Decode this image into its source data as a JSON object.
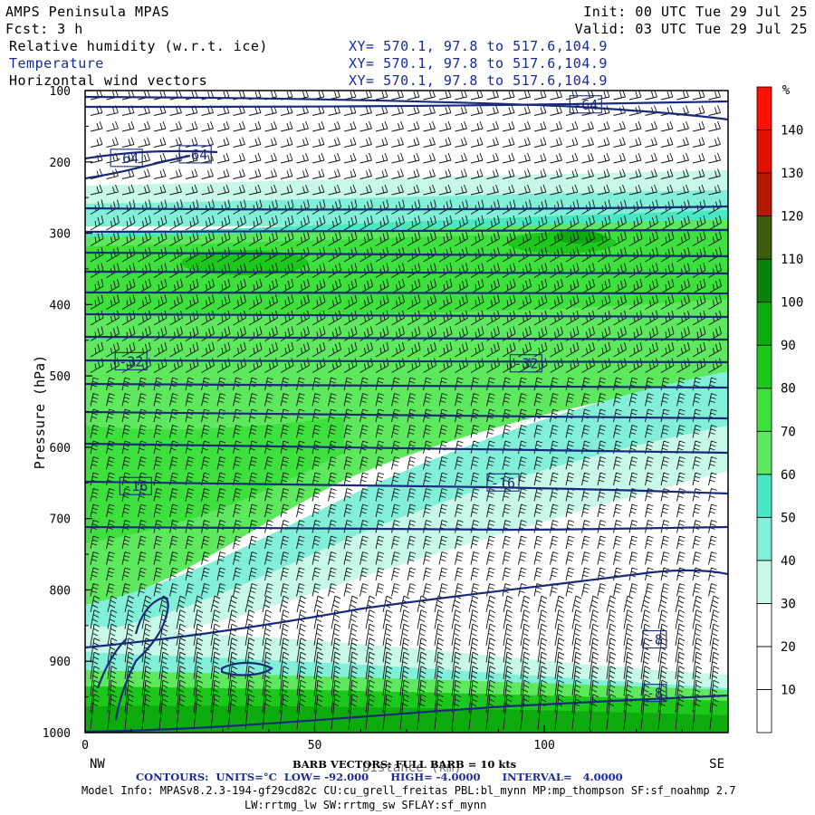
{
  "header": {
    "title": "AMPS Peninsula MPAS",
    "init": "Init: 00 UTC Tue 29 Jul 25",
    "fcst": "Fcst:    3 h",
    "valid": "Valid: 03 UTC Tue 29 Jul 25",
    "fields": [
      {
        "name": "Relative humidity (w.r.t. ice)",
        "xy": "XY= 570.1, 97.8 to 517.6,104.9"
      },
      {
        "name": "Temperature",
        "xy": "XY= 570.1, 97.8 to 517.6,104.9"
      },
      {
        "name": "Horizontal wind vectors",
        "xy": "XY= 570.1, 97.8 to 517.6,104.9"
      }
    ]
  },
  "chart_data": {
    "type": "heatmap",
    "ylabel": "Pressure (hPa)",
    "xlabel": "Distance (km)",
    "x_range": [
      0,
      140
    ],
    "y_range": [
      1000,
      100
    ],
    "x_ticks": [
      "0",
      "50",
      "100"
    ],
    "y_ticks": [
      "100",
      "200",
      "300",
      "400",
      "500",
      "600",
      "700",
      "800",
      "900",
      "1000"
    ],
    "x_end_labels": {
      "left": "NW",
      "right": "SE"
    },
    "colorbar": {
      "unit": "%",
      "levels": [
        "10",
        "20",
        "30",
        "40",
        "50",
        "60",
        "70",
        "80",
        "90",
        "100",
        "110",
        "120",
        "130",
        "140"
      ],
      "colors": [
        "#ffffff",
        "#ffffff",
        "#ffffff",
        "#c8f8ea",
        "#82f0d8",
        "#48e8c4",
        "#5ee85e",
        "#3ee03e",
        "#1cc81c",
        "#0eab0e",
        "#0a820a",
        "#3e5c0a",
        "#b41a00",
        "#e01000",
        "#ff1000"
      ]
    },
    "temperature_contour_labels": [
      {
        "label": "-64",
        "x": 109,
        "p": 120
      },
      {
        "label": "-64",
        "x": 9,
        "p": 195
      },
      {
        "label": "-64",
        "x": 24,
        "p": 190
      },
      {
        "label": "-32",
        "x": 10,
        "p": 480
      },
      {
        "label": "-32",
        "x": 96,
        "p": 483
      },
      {
        "label": "-16",
        "x": 11,
        "p": 655
      },
      {
        "label": "-16",
        "x": 91,
        "p": 650
      },
      {
        "label": "-8",
        "x": 124,
        "p": 870
      },
      {
        "label": "-8",
        "x": 124,
        "p": 945
      }
    ]
  },
  "footer": {
    "barb": "BARB VECTORS:  FULL BARB = 10 kts",
    "contours": "CONTOURS:  UNITS=°C  LOW= -92.000      HIGH= -4.0000      INTERVAL=   4.0000",
    "model_info": "Model Info: MPASv8.2.3-194-gf29cd82c CU:cu_grell_freitas PBL:bl_mynn MP:mp_thompson SF:sf_noahmp 2.7",
    "physics": "LW:rrtmg_lw SW:rrtmg_sw SFLAY:sf_mynn"
  }
}
